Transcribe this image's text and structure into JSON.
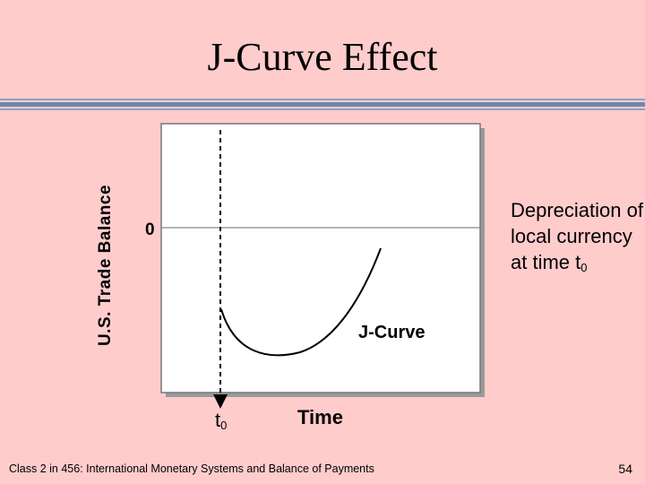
{
  "slide": {
    "title": "J-Curve Effect",
    "footer": "Class 2 in 456: International Monetary Systems and Balance of Payments",
    "page_number": "54"
  },
  "diagram": {
    "y_axis_label": "U.S. Trade Balance",
    "zero_label": "0",
    "annotation_text": "Depreciation of local currency at time t",
    "annotation_subscript": "0",
    "curve_label": "J-Curve",
    "t0_label": "t",
    "t0_subscript": "0",
    "x_axis_label": "Time"
  },
  "colors": {
    "background": "#ffcccc",
    "plot_background": "#ffffff",
    "title_rule": "#6b87ad"
  }
}
